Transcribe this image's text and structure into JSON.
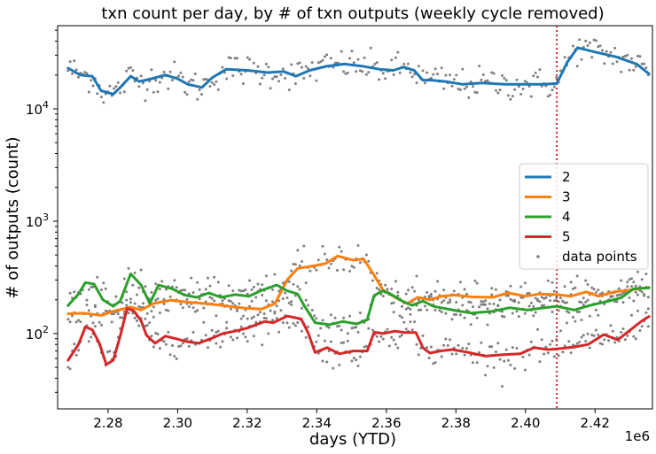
{
  "chart_data": {
    "type": "line",
    "title": "txn count per day, by # of txn outputs (weekly cycle removed)",
    "xlabel": "days (YTD)",
    "ylabel": "# of outputs (count)",
    "x_offset_label": "1e6",
    "xlim": [
      2.2655,
      2.4365
    ],
    "ylim_log10": [
      1.33,
      4.74
    ],
    "y_scale": "log",
    "x_ticks": [
      {
        "value": 2.28,
        "label": "2.28"
      },
      {
        "value": 2.3,
        "label": "2.30"
      },
      {
        "value": 2.32,
        "label": "2.32"
      },
      {
        "value": 2.34,
        "label": "2.34"
      },
      {
        "value": 2.36,
        "label": "2.36"
      },
      {
        "value": 2.38,
        "label": "2.38"
      },
      {
        "value": 2.4,
        "label": "2.40"
      },
      {
        "value": 2.42,
        "label": "2.42"
      }
    ],
    "y_ticks": [
      {
        "value": 100,
        "base": "10",
        "exp": "2"
      },
      {
        "value": 1000,
        "base": "10",
        "exp": "3"
      },
      {
        "value": 10000,
        "base": "10",
        "exp": "4"
      }
    ],
    "vline": {
      "x": 2.409,
      "color": "#d62728",
      "style": "dotted"
    },
    "legend": {
      "location": "center-right"
    },
    "series": [
      {
        "name": "2",
        "color": "#1f77b4",
        "points": [
          [
            2.2685,
            23000
          ],
          [
            2.272,
            20000
          ],
          [
            2.2755,
            19500
          ],
          [
            2.278,
            14500
          ],
          [
            2.2815,
            13500
          ],
          [
            2.2835,
            15500
          ],
          [
            2.2865,
            19500
          ],
          [
            2.289,
            17500
          ],
          [
            2.2925,
            18500
          ],
          [
            2.2965,
            20000
          ],
          [
            2.3,
            18500
          ],
          [
            2.303,
            16500
          ],
          [
            2.307,
            15500
          ],
          [
            2.31,
            19000
          ],
          [
            2.314,
            22500
          ],
          [
            2.32,
            22000
          ],
          [
            2.326,
            21000
          ],
          [
            2.3305,
            21500
          ],
          [
            2.334,
            19500
          ],
          [
            2.338,
            22000
          ],
          [
            2.343,
            24000
          ],
          [
            2.348,
            25000
          ],
          [
            2.353,
            24000
          ],
          [
            2.358,
            22500
          ],
          [
            2.362,
            22000
          ],
          [
            2.365,
            23500
          ],
          [
            2.368,
            22000
          ],
          [
            2.3705,
            18000
          ],
          [
            2.373,
            18000
          ],
          [
            2.377,
            17500
          ],
          [
            2.382,
            16500
          ],
          [
            2.3875,
            17000
          ],
          [
            2.394,
            16500
          ],
          [
            2.4,
            16500
          ],
          [
            2.405,
            16500
          ],
          [
            2.409,
            16800
          ],
          [
            2.412,
            26000
          ],
          [
            2.415,
            35000
          ],
          [
            2.42,
            32000
          ],
          [
            2.426,
            29000
          ],
          [
            2.432,
            25000
          ],
          [
            2.4355,
            20500
          ]
        ]
      },
      {
        "name": "3",
        "color": "#ff7f0e",
        "points": [
          [
            2.2685,
            150
          ],
          [
            2.273,
            152
          ],
          [
            2.278,
            145
          ],
          [
            2.2815,
            158
          ],
          [
            2.2865,
            172
          ],
          [
            2.2895,
            162
          ],
          [
            2.293,
            185
          ],
          [
            2.298,
            198
          ],
          [
            2.303,
            190
          ],
          [
            2.308,
            185
          ],
          [
            2.314,
            176
          ],
          [
            2.3195,
            168
          ],
          [
            2.324,
            165
          ],
          [
            2.328,
            185
          ],
          [
            2.3315,
            300
          ],
          [
            2.3345,
            380
          ],
          [
            2.339,
            400
          ],
          [
            2.3425,
            420
          ],
          [
            2.346,
            490
          ],
          [
            2.3505,
            450
          ],
          [
            2.3535,
            460
          ],
          [
            2.3565,
            330
          ],
          [
            2.359,
            245
          ],
          [
            2.3625,
            210
          ],
          [
            2.366,
            185
          ],
          [
            2.369,
            210
          ],
          [
            2.3725,
            200
          ],
          [
            2.376,
            215
          ],
          [
            2.3795,
            220
          ],
          [
            2.3845,
            212
          ],
          [
            2.3905,
            210
          ],
          [
            2.395,
            230
          ],
          [
            2.4,
            215
          ],
          [
            2.404,
            225
          ],
          [
            2.409,
            222
          ],
          [
            2.413,
            215
          ],
          [
            2.4175,
            235
          ],
          [
            2.421,
            215
          ],
          [
            2.4255,
            235
          ],
          [
            2.4305,
            245
          ],
          [
            2.4355,
            258
          ]
        ]
      },
      {
        "name": "4",
        "color": "#2ca02c",
        "points": [
          [
            2.2685,
            178
          ],
          [
            2.2715,
            225
          ],
          [
            2.2735,
            285
          ],
          [
            2.276,
            275
          ],
          [
            2.2785,
            200
          ],
          [
            2.2815,
            175
          ],
          [
            2.2835,
            195
          ],
          [
            2.2865,
            340
          ],
          [
            2.2895,
            270
          ],
          [
            2.292,
            185
          ],
          [
            2.2945,
            270
          ],
          [
            2.2985,
            250
          ],
          [
            2.302,
            220
          ],
          [
            2.3055,
            210
          ],
          [
            2.309,
            230
          ],
          [
            2.3125,
            210
          ],
          [
            2.3165,
            222
          ],
          [
            2.3205,
            215
          ],
          [
            2.3245,
            245
          ],
          [
            2.3285,
            270
          ],
          [
            2.3315,
            240
          ],
          [
            2.3345,
            225
          ],
          [
            2.3365,
            175
          ],
          [
            2.3395,
            125
          ],
          [
            2.3435,
            120
          ],
          [
            2.3475,
            128
          ],
          [
            2.3515,
            122
          ],
          [
            2.3545,
            133
          ],
          [
            2.3565,
            218
          ],
          [
            2.359,
            240
          ],
          [
            2.3615,
            222
          ],
          [
            2.3645,
            195
          ],
          [
            2.3675,
            178
          ],
          [
            2.3705,
            195
          ],
          [
            2.3735,
            175
          ],
          [
            2.3765,
            168
          ],
          [
            2.38,
            160
          ],
          [
            2.3845,
            152
          ],
          [
            2.3905,
            158
          ],
          [
            2.3955,
            170
          ],
          [
            2.4005,
            162
          ],
          [
            2.4055,
            170
          ],
          [
            2.409,
            175
          ],
          [
            2.414,
            162
          ],
          [
            2.4185,
            178
          ],
          [
            2.4225,
            190
          ],
          [
            2.4275,
            208
          ],
          [
            2.431,
            250
          ],
          [
            2.4355,
            255
          ]
        ]
      },
      {
        "name": "5",
        "color": "#d62728",
        "points": [
          [
            2.2685,
            58
          ],
          [
            2.2715,
            80
          ],
          [
            2.2735,
            115
          ],
          [
            2.2755,
            108
          ],
          [
            2.2775,
            82
          ],
          [
            2.2795,
            53
          ],
          [
            2.2815,
            58
          ],
          [
            2.2835,
            95
          ],
          [
            2.2855,
            168
          ],
          [
            2.2875,
            158
          ],
          [
            2.2895,
            130
          ],
          [
            2.291,
            97
          ],
          [
            2.2935,
            82
          ],
          [
            2.2965,
            95
          ],
          [
            2.2995,
            90
          ],
          [
            2.3025,
            85
          ],
          [
            2.306,
            82
          ],
          [
            2.3095,
            90
          ],
          [
            2.313,
            100
          ],
          [
            2.3165,
            105
          ],
          [
            2.32,
            112
          ],
          [
            2.325,
            128
          ],
          [
            2.3275,
            125
          ],
          [
            2.3315,
            143
          ],
          [
            2.3355,
            135
          ],
          [
            2.3375,
            102
          ],
          [
            2.3395,
            68
          ],
          [
            2.343,
            75
          ],
          [
            2.3465,
            66
          ],
          [
            2.3505,
            70
          ],
          [
            2.3545,
            70
          ],
          [
            2.3565,
            103
          ],
          [
            2.359,
            100
          ],
          [
            2.3625,
            105
          ],
          [
            2.3655,
            102
          ],
          [
            2.3685,
            102
          ],
          [
            2.3705,
            75
          ],
          [
            2.3725,
            67
          ],
          [
            2.3755,
            70
          ],
          [
            2.379,
            72
          ],
          [
            2.3835,
            68
          ],
          [
            2.3885,
            63
          ],
          [
            2.3935,
            65
          ],
          [
            2.3985,
            66
          ],
          [
            2.4025,
            75
          ],
          [
            2.4065,
            72
          ],
          [
            2.409,
            73
          ],
          [
            2.414,
            76
          ],
          [
            2.418,
            80
          ],
          [
            2.4225,
            98
          ],
          [
            2.4265,
            88
          ],
          [
            2.4305,
            110
          ],
          [
            2.4335,
            130
          ],
          [
            2.4355,
            142
          ]
        ]
      }
    ],
    "scatter": {
      "name": "data points",
      "color": "#7f7f7f"
    }
  }
}
